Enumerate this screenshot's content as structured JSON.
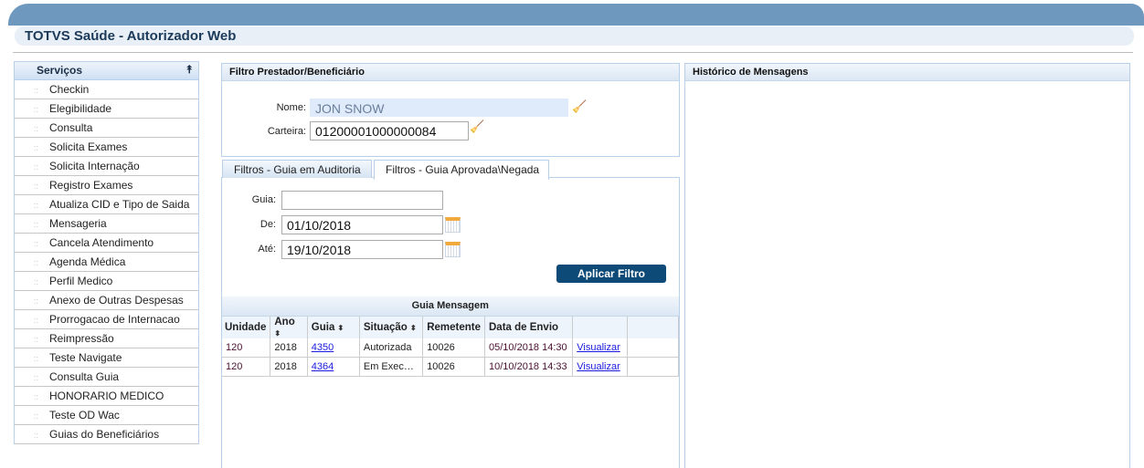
{
  "app": {
    "title": "TOTVS Saúde - Autorizador Web"
  },
  "sidebar": {
    "title": "Serviços",
    "items": [
      "Checkin",
      "Elegibilidade",
      "Consulta",
      "Solicita Exames",
      "Solicita Internação",
      "Registro Exames",
      "Atualiza CID e Tipo de Saida",
      "Mensageria",
      "Cancela Atendimento",
      "Agenda Médica",
      "Perfil Medico",
      "Anexo de Outras Despesas",
      "Prorrogacao de Internacao",
      "Reimpressão",
      "Teste Navigate",
      "Consulta Guia",
      "HONORARIO MEDICO",
      "Teste OD Wac",
      "Guias do Beneficiários"
    ]
  },
  "filtro": {
    "title": "Filtro Prestador/Beneficiário",
    "nome_label": "Nome:",
    "nome_value": "JON SNOW",
    "carteira_label": "Carteira:",
    "carteira_value": "01200001000000084"
  },
  "tabs": [
    {
      "label": "Filtros - Guia em Auditoria"
    },
    {
      "label": "Filtros - Guia Aprovada\\Negada",
      "active": true
    }
  ],
  "form": {
    "guia_label": "Guia:",
    "guia_value": "",
    "de_label": "De:",
    "de_value": "01/10/2018",
    "ate_label": "Até:",
    "ate_value": "19/10/2018",
    "apply_label": "Aplicar Filtro"
  },
  "table": {
    "caption": "Guia Mensagem",
    "columns": [
      "Unidade",
      "Ano",
      "Guia",
      "Situação",
      "Remetente",
      "Data de Envio",
      "",
      ""
    ],
    "rows": [
      [
        "120",
        "2018",
        "4350",
        "Autorizada",
        "10026",
        "05/10/2018 14:30",
        "Visualizar"
      ],
      [
        "120",
        "2018",
        "4364",
        "Em Exec…",
        "10026",
        "10/10/2018 14:33",
        "Visualizar"
      ]
    ]
  },
  "historico": {
    "title": "Histórico de Mensagens"
  }
}
